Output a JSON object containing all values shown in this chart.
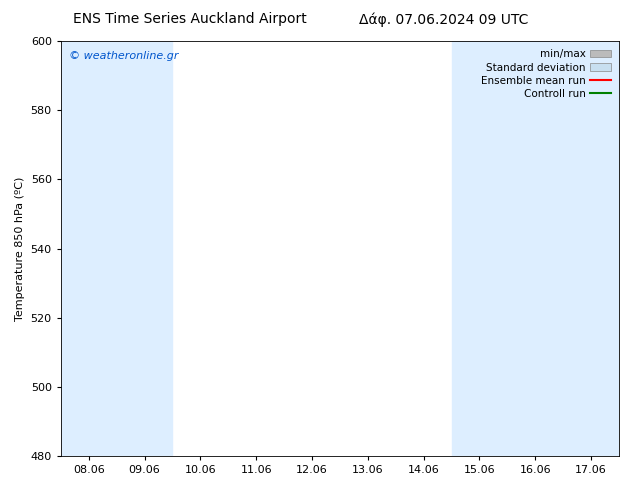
{
  "title_left": "ENS Time Series Auckland Airport",
  "title_right": "Δάφ. 07.06.2024 09 UTC",
  "ylabel": "Temperature 850 hPa (ºC)",
  "xlim_dates": [
    "08.06",
    "09.06",
    "10.06",
    "11.06",
    "12.06",
    "13.06",
    "14.06",
    "15.06",
    "16.06",
    "17.06"
  ],
  "ylim": [
    480,
    600
  ],
  "yticks": [
    480,
    500,
    520,
    540,
    560,
    580,
    600
  ],
  "bg_color": "#ffffff",
  "plot_bg_color": "#ffffff",
  "shaded_color": "#ddeeff",
  "watermark_text": "© weatheronline.gr",
  "watermark_color": "#0055cc",
  "legend_items": [
    {
      "label": "min/max",
      "color": "#bbbbbb",
      "style": "hbar"
    },
    {
      "label": "Standard deviation",
      "color": "#c8dff0",
      "style": "hbar"
    },
    {
      "label": "Ensemble mean run",
      "color": "red",
      "style": "line"
    },
    {
      "label": "Controll run",
      "color": "green",
      "style": "line"
    }
  ],
  "title_fontsize": 10,
  "tick_fontsize": 8,
  "ylabel_fontsize": 8,
  "legend_fontsize": 7.5
}
